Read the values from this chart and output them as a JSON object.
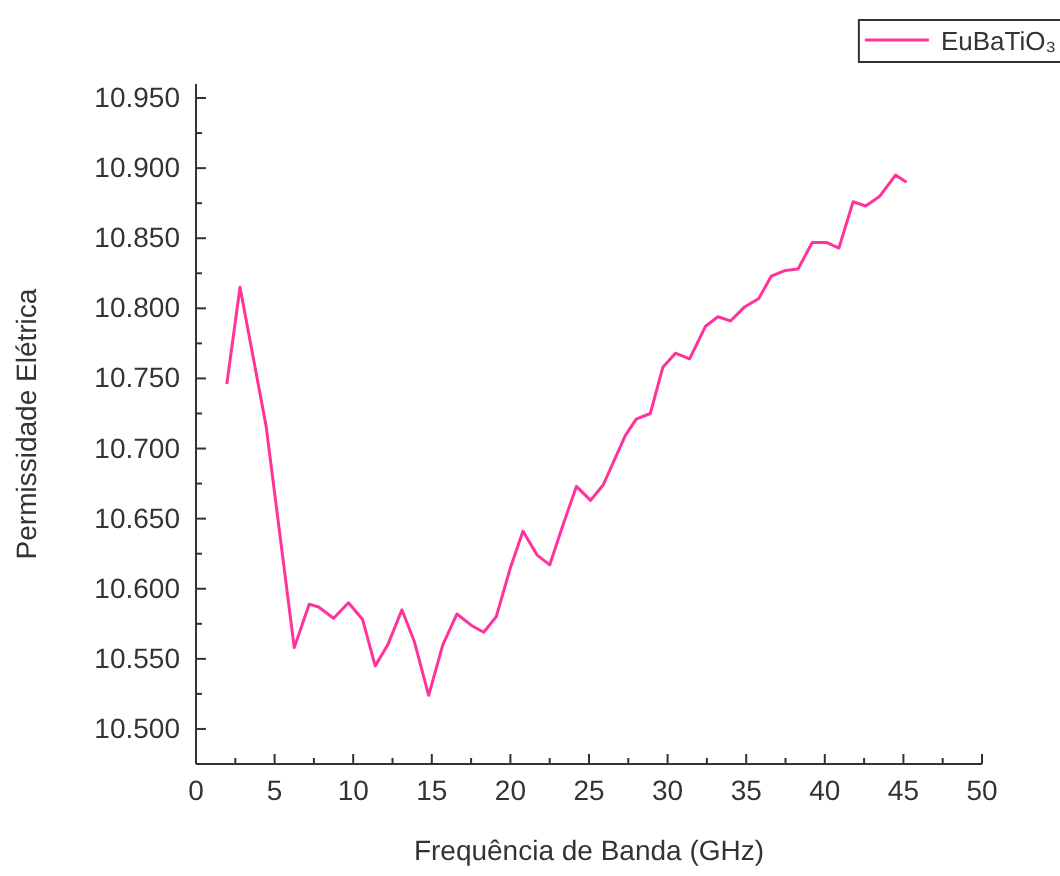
{
  "chart_data": {
    "type": "line",
    "xlabel": "Frequência de Banda (GHz)",
    "ylabel": "Permissidade Elétrica",
    "xlim": [
      0,
      50
    ],
    "ylim": [
      10.475,
      10.96
    ],
    "xticks": [
      0,
      {
        "value": 2.5,
        "label": null
      },
      5,
      {
        "value": 7.5,
        "label": null
      },
      10,
      {
        "value": 12.5,
        "label": null
      },
      15,
      {
        "value": 17.5,
        "label": null
      },
      20,
      {
        "value": 22.5,
        "label": null
      },
      25,
      {
        "value": 27.5,
        "label": null
      },
      30,
      {
        "value": 32.5,
        "label": null
      },
      35,
      {
        "value": 37.5,
        "label": null
      },
      40,
      {
        "value": 42.5,
        "label": null
      },
      45,
      {
        "value": 47.5,
        "label": null
      },
      50
    ],
    "yticks": [
      {
        "value": 10.5,
        "label": "10.500"
      },
      {
        "value": 10.525,
        "label": null
      },
      {
        "value": 10.55,
        "label": "10.550"
      },
      {
        "value": 10.575,
        "label": null
      },
      {
        "value": 10.6,
        "label": "10.600"
      },
      {
        "value": 10.625,
        "label": null
      },
      {
        "value": 10.65,
        "label": "10.650"
      },
      {
        "value": 10.675,
        "label": null
      },
      {
        "value": 10.7,
        "label": "10.700"
      },
      {
        "value": 10.725,
        "label": null
      },
      {
        "value": 10.75,
        "label": "10.750"
      },
      {
        "value": 10.775,
        "label": null
      },
      {
        "value": 10.8,
        "label": "10.800"
      },
      {
        "value": 10.825,
        "label": null
      },
      {
        "value": 10.85,
        "label": "10.850"
      },
      {
        "value": 10.875,
        "label": null
      },
      {
        "value": 10.9,
        "label": "10.900"
      },
      {
        "value": 10.925,
        "label": null
      },
      {
        "value": 10.95,
        "label": "10.950"
      }
    ],
    "legend": "top right",
    "grid": false,
    "marker": "none",
    "line_style": "solid",
    "series": [
      {
        "name": "EuBaTiO₃",
        "color": "#ff3399",
        "x": [
          1.96,
          2.8,
          4.46,
          6.25,
          7.2,
          7.8,
          8.75,
          9.7,
          10.6,
          11.4,
          12.2,
          13.1,
          13.9,
          14.8,
          15.7,
          16.6,
          17.5,
          18.3,
          19.1,
          20.0,
          20.8,
          21.7,
          22.5,
          23.3,
          24.2,
          25.1,
          25.9,
          27.3,
          28.0,
          28.9,
          29.7,
          30.5,
          31.4,
          32.4,
          33.2,
          34.0,
          34.9,
          35.8,
          36.6,
          37.5,
          38.3,
          39.2,
          40.1,
          40.9,
          41.8,
          42.6,
          43.5,
          44.5,
          45.2
        ],
        "values": [
          10.746,
          10.815,
          10.716,
          10.558,
          10.589,
          10.587,
          10.579,
          10.59,
          10.578,
          10.545,
          10.56,
          10.585,
          10.562,
          10.524,
          10.56,
          10.582,
          10.574,
          10.569,
          10.58,
          10.615,
          10.641,
          10.624,
          10.617,
          10.644,
          10.673,
          10.663,
          10.674,
          10.709,
          10.721,
          10.725,
          10.758,
          10.768,
          10.764,
          10.787,
          10.794,
          10.791,
          10.801,
          10.807,
          10.823,
          10.827,
          10.828,
          10.847,
          10.847,
          10.843,
          10.876,
          10.873,
          10.88,
          10.895,
          10.89
        ]
      }
    ]
  }
}
